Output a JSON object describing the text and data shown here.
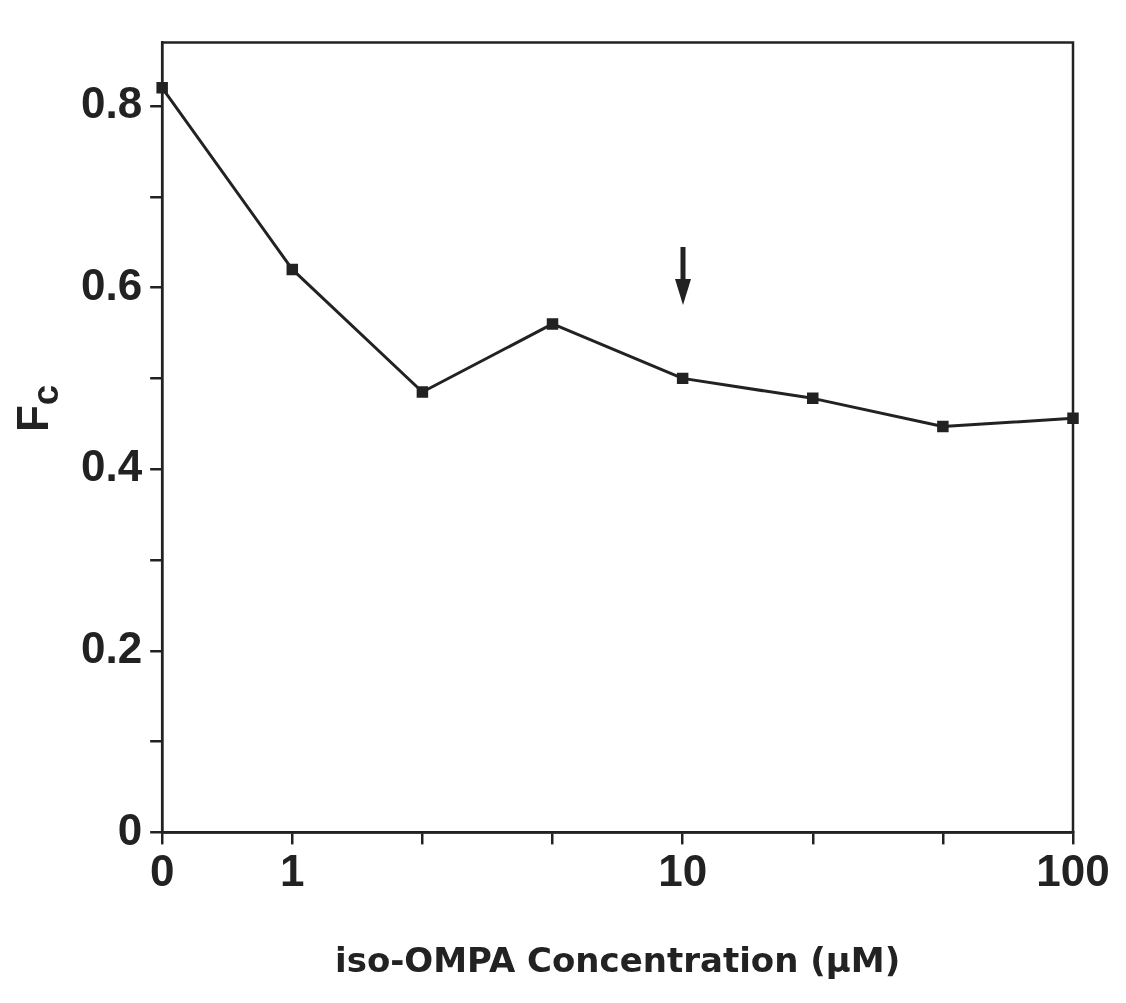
{
  "chart_data": {
    "type": "line",
    "xlabel": "iso-OMPA Concentration (µM)",
    "ylabel": "F$_{c}$",
    "categories": [
      "0",
      "1",
      null,
      null,
      "10",
      null,
      null,
      "100"
    ],
    "series": [
      {
        "color": "#222222",
        "values": [
          0.82,
          0.62,
          0.485,
          0.56,
          0.5,
          0.478,
          0.447,
          0.456
        ]
      }
    ],
    "ylim": [
      0,
      0.87
    ],
    "yticks": [
      0,
      {
        "value": 0.1,
        "label": null
      },
      0.2,
      {
        "value": 0.3,
        "label": null
      },
      0.4,
      {
        "value": 0.5,
        "label": null
      },
      0.6,
      {
        "value": 0.7,
        "label": null
      },
      0.8
    ],
    "marker": "square",
    "line_style": "solid",
    "grid": false,
    "legend": false
  }
}
